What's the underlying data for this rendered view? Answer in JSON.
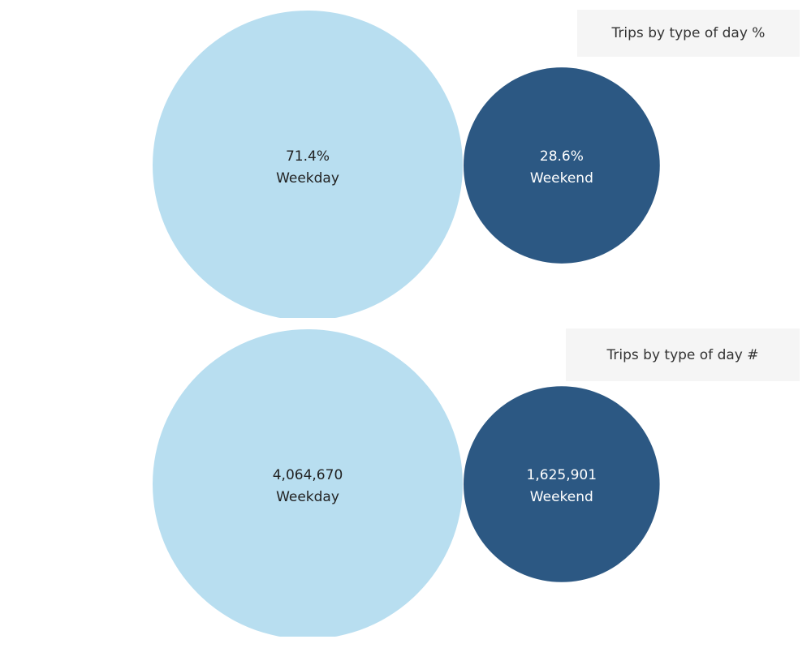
{
  "colors": {
    "weekday": "#b8def0",
    "weekend": "#2c5883",
    "dark_text": "#222222",
    "light_text": "#ffffff"
  },
  "chart_data": [
    {
      "type": "bubble",
      "title": "Trips by type of day %",
      "bubbles": [
        {
          "label": "Weekday",
          "value": 71.4,
          "display": "71.4%",
          "color": "#b8def0"
        },
        {
          "label": "Weekend",
          "value": 28.6,
          "display": "28.6%",
          "color": "#2c5883"
        }
      ]
    },
    {
      "type": "bubble",
      "title": "Trips by type of day #",
      "bubbles": [
        {
          "label": "Weekday",
          "value": 4064670,
          "display": "4,064,670",
          "color": "#b8def0"
        },
        {
          "label": "Weekend",
          "value": 1625901,
          "display": "1,625,901",
          "color": "#2c5883"
        }
      ]
    }
  ]
}
